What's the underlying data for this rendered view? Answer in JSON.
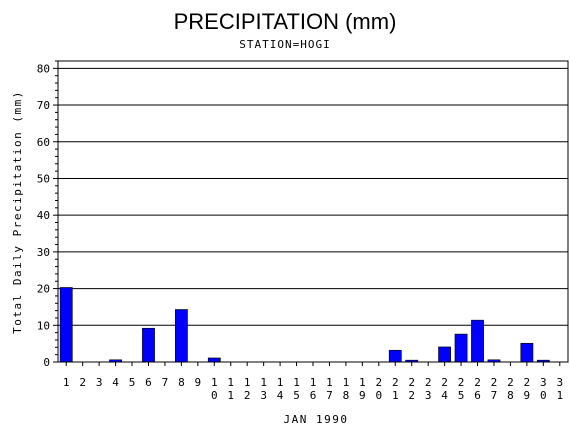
{
  "chart_data": {
    "type": "bar",
    "title": "PRECIPITATION (mm)",
    "subtitle": "STATION=HOGI",
    "xlabel": "JAN 1990",
    "ylabel": "Total Daily Precipitation (mm)",
    "ylim": [
      0,
      82
    ],
    "yticks": [
      0,
      10,
      20,
      30,
      40,
      50,
      60,
      70,
      80
    ],
    "grid": true,
    "categories": [
      "1",
      "2",
      "3",
      "4",
      "5",
      "6",
      "7",
      "8",
      "9",
      "10",
      "11",
      "12",
      "13",
      "14",
      "15",
      "16",
      "17",
      "18",
      "19",
      "20",
      "21",
      "22",
      "23",
      "24",
      "25",
      "26",
      "27",
      "28",
      "29",
      "30",
      "31"
    ],
    "values": [
      20.3,
      0,
      0,
      0.6,
      0,
      9.2,
      0,
      14.3,
      0,
      1.1,
      0,
      0,
      0,
      0,
      0,
      0,
      0,
      0,
      0,
      0,
      3.2,
      0.5,
      0,
      4.1,
      7.6,
      11.4,
      0.6,
      0,
      5.1,
      0.5,
      0
    ],
    "bar_color": "#0000ff"
  }
}
